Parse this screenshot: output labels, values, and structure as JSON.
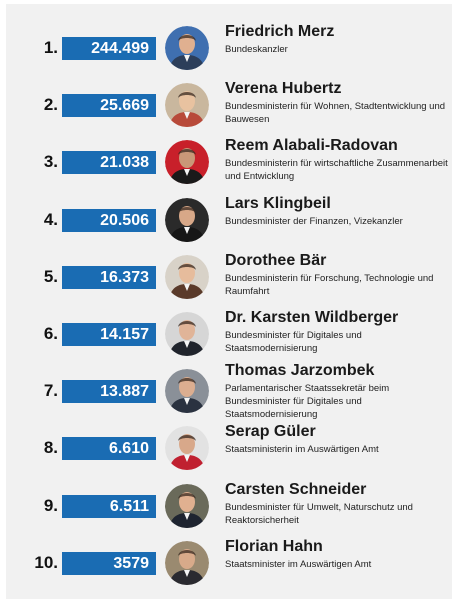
{
  "chart_data": {
    "type": "bar",
    "title": "",
    "xlabel": "",
    "ylabel": "",
    "colors": {
      "bar": "#1a6cb3",
      "background": "#f1f1f1"
    },
    "items": [
      {
        "rank": "1.",
        "value_label": "244.499",
        "value": 244499,
        "name": "Friedrich Merz",
        "role": "Bundeskanzler",
        "avatar_bg": "#3f6fb0",
        "avatar_skin": "#e0b090",
        "avatar_suit": "#2c3e5a"
      },
      {
        "rank": "2.",
        "value_label": "25.669",
        "value": 25669,
        "name": "Verena Hubertz",
        "role": "Bundesministerin für Wohnen, Stadtentwicklung und Bauwesen",
        "avatar_bg": "#c9b79e",
        "avatar_skin": "#e8c2a0",
        "avatar_suit": "#b84a3a"
      },
      {
        "rank": "3.",
        "value_label": "21.038",
        "value": 21038,
        "name": "Reem Alabali-Radovan",
        "role": "Bundesministerin für wirtschaftliche Zusammenarbeit und Entwicklung",
        "avatar_bg": "#c8202a",
        "avatar_skin": "#c99878",
        "avatar_suit": "#1a1a1a"
      },
      {
        "rank": "4.",
        "value_label": "20.506",
        "value": 20506,
        "name": "Lars Klingbeil",
        "role": "Bundesminister der Finanzen, Vizekanzler",
        "avatar_bg": "#2a2a2a",
        "avatar_skin": "#d8a888",
        "avatar_suit": "#161616"
      },
      {
        "rank": "5.",
        "value_label": "16.373",
        "value": 16373,
        "name": "Dorothee Bär",
        "role": "Bundesministerin für Forschung, Technologie und Raumfahrt",
        "avatar_bg": "#d8d2c8",
        "avatar_skin": "#e6bc9c",
        "avatar_suit": "#5a3a2a"
      },
      {
        "rank": "6.",
        "value_label": "14.157",
        "value": 14157,
        "name": "Dr. Karsten Wildberger",
        "role": "Bundesminister für Digitales und Staatsmodernisierung",
        "avatar_bg": "#d6d6d6",
        "avatar_skin": "#e0b498",
        "avatar_suit": "#20242c"
      },
      {
        "rank": "7.",
        "value_label": "13.887",
        "value": 13887,
        "name": "Thomas Jarzombek",
        "role": "Parlamentarischer Staatssekretär beim Bundesminister für Digitales und Staatsmodernisierung",
        "avatar_bg": "#8a9098",
        "avatar_skin": "#dcae90",
        "avatar_suit": "#2a3240"
      },
      {
        "rank": "8.",
        "value_label": "6.610",
        "value": 6610,
        "name": "Serap Güler",
        "role": "Staatsministerin im Auswärtigen Amt",
        "avatar_bg": "#e2e2e2",
        "avatar_skin": "#d8a88a",
        "avatar_suit": "#c02030"
      },
      {
        "rank": "9.",
        "value_label": "6.511",
        "value": 6511,
        "name": "Carsten Schneider",
        "role": "Bundesminister für Umwelt, Naturschutz und Reaktorsicherheit",
        "avatar_bg": "#6a6a5a",
        "avatar_skin": "#e0b090",
        "avatar_suit": "#1e2430"
      },
      {
        "rank": "10.",
        "value_label": "3579",
        "value": 3579,
        "name": "Florian Hahn",
        "role": "Staatsminister im Auswärtigen Amt",
        "avatar_bg": "#9a8a70",
        "avatar_skin": "#d8aa8a",
        "avatar_suit": "#2a2a30"
      }
    ]
  }
}
